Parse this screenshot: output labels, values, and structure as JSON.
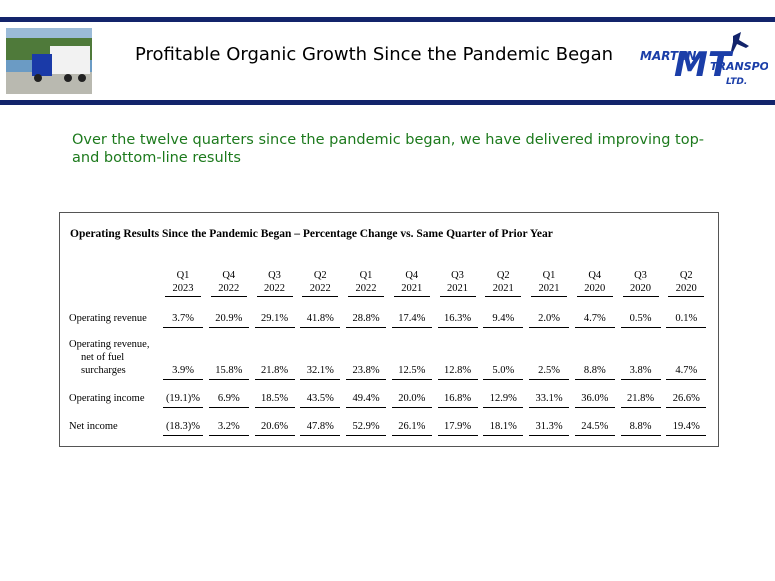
{
  "header": {
    "title": "Profitable Organic Growth Since the Pandemic Began",
    "logo": {
      "mark": "MT",
      "top": "MARTEN",
      "bottom": "TRANSPORT",
      "suffix": "LTD."
    }
  },
  "subtitle": [
    "Over the twelve quarters since the pandemic began, we have delivered improving top-",
    "and bottom-line results"
  ],
  "table": {
    "title": "Operating Results Since the Pandemic Began – Percentage Change vs. Same Quarter of Prior Year",
    "columns": [
      [
        "Q1",
        "2023"
      ],
      [
        "Q4",
        "2022"
      ],
      [
        "Q3",
        "2022"
      ],
      [
        "Q2",
        "2022"
      ],
      [
        "Q1",
        "2022"
      ],
      [
        "Q4",
        "2021"
      ],
      [
        "Q3",
        "2021"
      ],
      [
        "Q2",
        "2021"
      ],
      [
        "Q1",
        "2021"
      ],
      [
        "Q4",
        "2020"
      ],
      [
        "Q3",
        "2020"
      ],
      [
        "Q2",
        "2020"
      ]
    ],
    "rows": [
      {
        "label": [
          "Operating revenue"
        ],
        "values": [
          "3.7%",
          "20.9%",
          "29.1%",
          "41.8%",
          "28.8%",
          "17.4%",
          "16.3%",
          "9.4%",
          "2.0%",
          "4.7%",
          "0.5%",
          "0.1%"
        ]
      },
      {
        "label": [
          "Operating revenue,",
          "net of fuel",
          "surcharges"
        ],
        "values": [
          "3.9%",
          "15.8%",
          "21.8%",
          "32.1%",
          "23.8%",
          "12.5%",
          "12.8%",
          "5.0%",
          "2.5%",
          "8.8%",
          "3.8%",
          "4.7%"
        ]
      },
      {
        "label": [
          "Operating income"
        ],
        "values": [
          "(19.1)%",
          "6.9%",
          "18.5%",
          "43.5%",
          "49.4%",
          "20.0%",
          "16.8%",
          "12.9%",
          "33.1%",
          "36.0%",
          "21.8%",
          "26.6%"
        ]
      },
      {
        "label": [
          "Net income"
        ],
        "values": [
          "(18.3)%",
          "3.2%",
          "20.6%",
          "47.8%",
          "52.9%",
          "26.1%",
          "17.9%",
          "18.1%",
          "31.3%",
          "24.5%",
          "8.8%",
          "19.4%"
        ]
      }
    ]
  }
}
